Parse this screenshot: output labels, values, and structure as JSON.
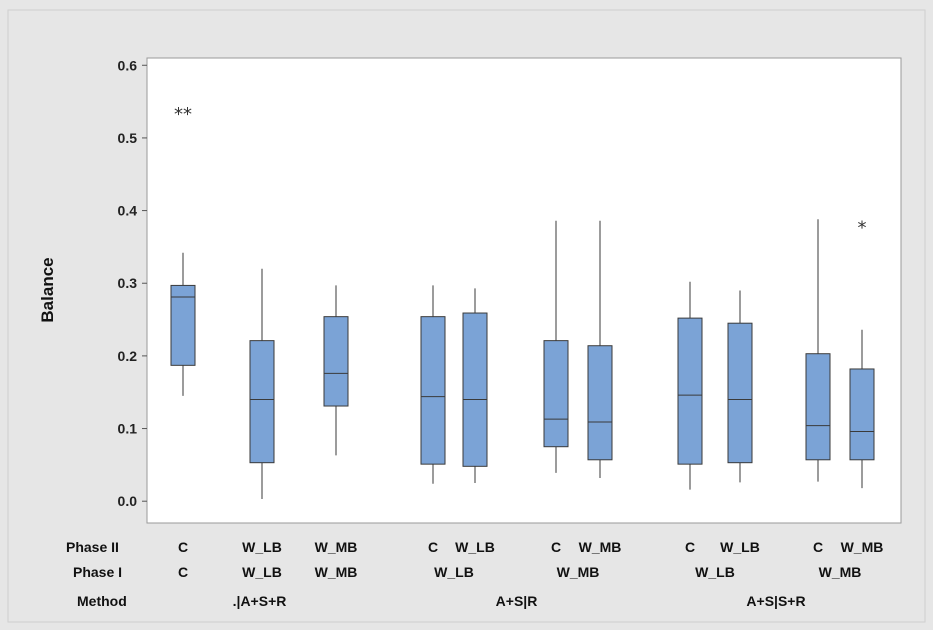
{
  "chart_data": {
    "type": "boxplot",
    "ylabel": "Balance",
    "ylim": [
      -0.03,
      0.61
    ],
    "yticks": [
      0.0,
      0.1,
      0.2,
      0.3,
      0.4,
      0.5,
      0.6
    ],
    "ytick_labels": [
      "0.0",
      "0.1",
      "0.2",
      "0.3",
      "0.4",
      "0.5",
      "0.6"
    ],
    "grid": false,
    "colors": {
      "box_fill": "#7ba3d6",
      "box_edge": "#3a3a3a",
      "plot_bg": "#ffffff",
      "page_bg": "#e6e6e6"
    },
    "row_titles": {
      "phase2": "Phase II",
      "phase1": "Phase I",
      "method": "Method"
    },
    "boxes": [
      {
        "phase2": "C",
        "phase1": "C",
        "method": ".|A+S+R",
        "whisker_low": 0.145,
        "q1": 0.187,
        "median": 0.281,
        "q3": 0.297,
        "whisker_high": 0.342,
        "outliers": [
          0.534,
          0.534
        ],
        "outlier_marker": "*"
      },
      {
        "phase2": "W_LB",
        "phase1": "W_LB",
        "method": ".|A+S+R",
        "whisker_low": 0.003,
        "q1": 0.053,
        "median": 0.14,
        "q3": 0.221,
        "whisker_high": 0.32,
        "outliers": []
      },
      {
        "phase2": "W_MB",
        "phase1": "W_MB",
        "method": ".|A+S+R",
        "whisker_low": 0.063,
        "q1": 0.131,
        "median": 0.176,
        "q3": 0.254,
        "whisker_high": 0.297,
        "outliers": []
      },
      {
        "phase2": "C",
        "phase1": "W_LB",
        "method": "A+S|R",
        "whisker_low": 0.024,
        "q1": 0.051,
        "median": 0.144,
        "q3": 0.254,
        "whisker_high": 0.297,
        "outliers": []
      },
      {
        "phase2": "W_LB",
        "phase1": "W_LB",
        "method": "A+S|R",
        "whisker_low": 0.025,
        "q1": 0.048,
        "median": 0.14,
        "q3": 0.259,
        "whisker_high": 0.293,
        "outliers": []
      },
      {
        "phase2": "C",
        "phase1": "W_MB",
        "method": "A+S|R",
        "whisker_low": 0.039,
        "q1": 0.075,
        "median": 0.113,
        "q3": 0.221,
        "whisker_high": 0.386,
        "outliers": []
      },
      {
        "phase2": "W_MB",
        "phase1": "W_MB",
        "method": "A+S|R",
        "whisker_low": 0.032,
        "q1": 0.057,
        "median": 0.109,
        "q3": 0.214,
        "whisker_high": 0.386,
        "outliers": []
      },
      {
        "phase2": "C",
        "phase1": "W_LB",
        "method": "A+S|S+R",
        "whisker_low": 0.016,
        "q1": 0.051,
        "median": 0.146,
        "q3": 0.252,
        "whisker_high": 0.302,
        "outliers": []
      },
      {
        "phase2": "W_LB",
        "phase1": "W_LB",
        "method": "A+S|S+R",
        "whisker_low": 0.026,
        "q1": 0.053,
        "median": 0.14,
        "q3": 0.245,
        "whisker_high": 0.29,
        "outliers": []
      },
      {
        "phase2": "C",
        "phase1": "W_MB",
        "method": "A+S|S+R",
        "whisker_low": 0.027,
        "q1": 0.057,
        "median": 0.104,
        "q3": 0.203,
        "whisker_high": 0.388,
        "outliers": []
      },
      {
        "phase2": "W_MB",
        "phase1": "W_MB",
        "method": "A+S|S+R",
        "whisker_low": 0.018,
        "q1": 0.057,
        "median": 0.096,
        "q3": 0.182,
        "whisker_high": 0.236,
        "outliers": [
          0.378
        ],
        "outlier_marker": "*"
      }
    ],
    "phase1_groups": [
      {
        "label": "C",
        "first": 0,
        "last": 0
      },
      {
        "label": "W_LB",
        "first": 1,
        "last": 1
      },
      {
        "label": "W_MB",
        "first": 2,
        "last": 2
      },
      {
        "label": "W_LB",
        "first": 3,
        "last": 4
      },
      {
        "label": "W_MB",
        "first": 5,
        "last": 6
      },
      {
        "label": "W_LB",
        "first": 7,
        "last": 8
      },
      {
        "label": "W_MB",
        "first": 9,
        "last": 10
      }
    ],
    "method_groups": [
      {
        "label": ".|A+S+R",
        "first": 0,
        "last": 2
      },
      {
        "label": "A+S|R",
        "first": 3,
        "last": 6
      },
      {
        "label": "A+S|S+R",
        "first": 7,
        "last": 10
      }
    ]
  }
}
